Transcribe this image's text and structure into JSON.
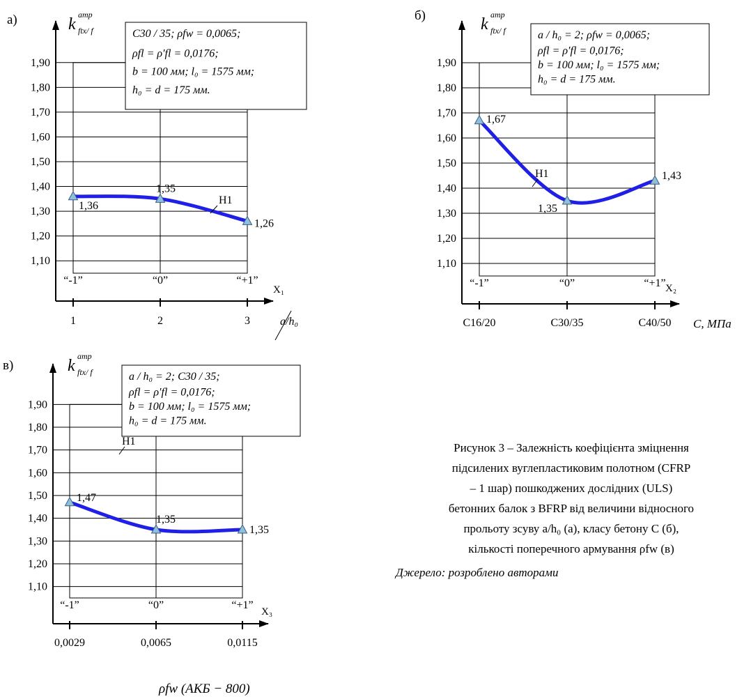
{
  "chart_data": [
    {
      "type": "line",
      "panel_letter": "а)",
      "y_title": "k",
      "y_title_sup": "amp",
      "y_title_sub": "ftx/ f",
      "x_title_main": "X₁",
      "x_title_second": "a/h₀",
      "ylim": [
        1.05,
        1.95
      ],
      "y_ticks": [
        "1,10",
        "1,20",
        "1,30",
        "1,40",
        "1,50",
        "1,60",
        "1,70",
        "1,80",
        "1,90"
      ],
      "x_positions": [
        1,
        2,
        3
      ],
      "levels": [
        "“-1”",
        "“0”",
        "“+1”"
      ],
      "x_tick_labels": [
        "1",
        "2",
        "3"
      ],
      "series": [
        {
          "name": "Н1",
          "x": [
            1,
            2,
            3
          ],
          "values": [
            1.36,
            1.35,
            1.26
          ]
        }
      ],
      "data_labels": [
        "1,36",
        "1,35",
        "1,26"
      ],
      "legend_lines": [
        "C30 / 35; ρfw = 0,0065;",
        "ρfl = ρ′fl = 0,0176;",
        "b = 100 мм; l₀ = 1575 мм;",
        "h₀ = d = 175 мм."
      ]
    },
    {
      "type": "line",
      "panel_letter": "б)",
      "y_title": "k",
      "y_title_sup": "amp",
      "y_title_sub": "ftx/ f",
      "x_title_main": "X₂",
      "x_title_second": "C, МПа",
      "ylim": [
        1.05,
        1.95
      ],
      "y_ticks": [
        "1,10",
        "1,20",
        "1,30",
        "1,40",
        "1,50",
        "1,60",
        "1,70",
        "1,80",
        "1,90"
      ],
      "x_positions": [
        -1,
        0,
        1
      ],
      "levels": [
        "“-1”",
        "“0”",
        "“+1”"
      ],
      "x_tick_labels": [
        "C16/20",
        "C30/35",
        "C40/50"
      ],
      "series": [
        {
          "name": "Н1",
          "x": [
            -1,
            0,
            1
          ],
          "values": [
            1.67,
            1.35,
            1.43
          ]
        }
      ],
      "data_labels": [
        "1,67",
        "1,35",
        "1,43"
      ],
      "legend_lines": [
        "a / h₀ = 2; ρfw = 0,0065;",
        "ρfl = ρ′fl = 0,0176;",
        "b = 100 мм; l₀ = 1575 мм;",
        "h₀ = d = 175 мм."
      ]
    },
    {
      "type": "line",
      "panel_letter": "в)",
      "y_title": "k",
      "y_title_sup": "amp",
      "y_title_sub": "ftx/ f",
      "x_title_main": "X₃",
      "x_title_second": "ρfw (АКБ − 800)",
      "ylim": [
        1.05,
        1.95
      ],
      "y_ticks": [
        "1,10",
        "1,20",
        "1,30",
        "1,40",
        "1,50",
        "1,60",
        "1,70",
        "1,80",
        "1,90"
      ],
      "x_positions": [
        -1,
        0,
        1
      ],
      "levels": [
        "“-1”",
        "“0”",
        "“+1”"
      ],
      "x_tick_labels": [
        "0,0029",
        "0,0065",
        "0,0115"
      ],
      "series": [
        {
          "name": "Н1",
          "x": [
            -1,
            0,
            1
          ],
          "values": [
            1.47,
            1.35,
            1.35
          ]
        }
      ],
      "data_labels": [
        "1,47",
        "1,35",
        "1,35"
      ],
      "legend_lines": [
        "a / h₀ = 2; C30 / 35;",
        "ρfl = ρ′fl = 0,0176;",
        "b = 100 мм; l₀ = 1575 мм;",
        "h₀ = d = 175 мм."
      ]
    }
  ],
  "caption": {
    "lines": [
      "Рисунок 3 – Залежність коефіцієнта зміцнення",
      "підсилених вуглепластиковим полотном (CFRP",
      "– 1 шар) пошкоджених дослідних  (ULS)",
      "бетонних балок з BFRP від величини відносного",
      "прольоту зсуву  a/h₀  (а), класу бетону C (б),",
      "кількості поперечного армування  ρfw  (в)"
    ],
    "source": "Джерело: розроблено авторами"
  },
  "colors": {
    "line": "#1f1fe6",
    "marker_fill": "#8fbfe0",
    "marker_stroke": "#3a5f7a",
    "axis": "#000000"
  }
}
